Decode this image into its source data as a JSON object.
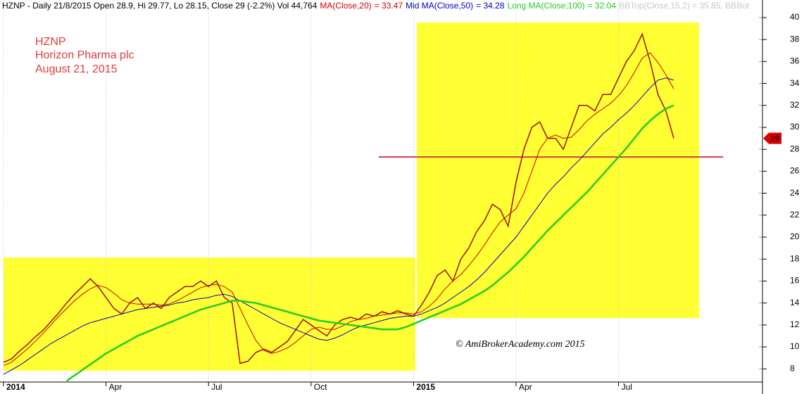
{
  "chart_data": {
    "type": "stock",
    "header": {
      "prefix": "HZNP - Daily 21/8/2015 Open 28.9, Hi 29.77, Lo 28.15, Close 29 (-2.2%) Vol 44,764",
      "suffix": "BBTop(Close,15,2) = 35.85, BBBot",
      "suffix_color": "#c8c8c8"
    },
    "annotation": {
      "ticker": "HZNP",
      "company": "Horizon Pharma plc",
      "date": "August 21, 2015",
      "color": "#e03c3c"
    },
    "watermark": "© AmiBrokerAcademy.com 2015",
    "categories": [
      "2014",
      null,
      null,
      null,
      null,
      null,
      null,
      null,
      null,
      null,
      null,
      null,
      null,
      "Apr",
      null,
      null,
      null,
      null,
      null,
      null,
      null,
      null,
      null,
      null,
      null,
      null,
      "Jul",
      null,
      null,
      null,
      null,
      null,
      null,
      null,
      null,
      null,
      null,
      null,
      null,
      "Oct",
      null,
      null,
      null,
      null,
      null,
      null,
      null,
      null,
      null,
      null,
      null,
      null,
      "2015",
      null,
      null,
      null,
      null,
      null,
      null,
      null,
      null,
      null,
      null,
      null,
      null,
      "Apr",
      null,
      null,
      null,
      null,
      null,
      null,
      null,
      null,
      null,
      null,
      null,
      null,
      "Jul",
      null,
      null,
      null,
      null,
      null,
      null,
      null
    ],
    "price": {
      "color": "#a01010",
      "values": [
        8.6,
        8.9,
        9.6,
        10.2,
        10.9,
        11.5,
        12.3,
        13.1,
        14,
        14.8,
        15.5,
        16.2,
        15.5,
        14.5,
        13.5,
        13,
        14,
        14.5,
        13.5,
        14,
        13.5,
        14.5,
        15,
        15.5,
        15.5,
        16,
        15.5,
        16,
        14.5,
        14,
        8.5,
        8.7,
        9.5,
        9.8,
        9.5,
        10,
        10.5,
        11.5,
        12.5,
        12,
        11.5,
        11,
        12,
        12.5,
        12.7,
        12.5,
        13,
        12.8,
        13.2,
        13,
        13.3,
        13,
        12.8,
        13.8,
        15,
        16.5,
        17,
        16,
        18,
        19,
        20.5,
        21.5,
        23,
        22.5,
        21,
        25,
        28,
        30,
        30.5,
        29,
        29,
        28,
        30,
        32,
        32,
        31.5,
        33,
        33,
        34.5,
        36,
        37,
        38.5,
        36,
        33,
        31.5,
        29
      ]
    },
    "series": [
      {
        "name": "MA(Close,20)",
        "label": "= 33.47",
        "color": "#d00000",
        "width": 1,
        "values": [
          8.3,
          8.6,
          9.2,
          9.8,
          10.5,
          11.2,
          12,
          12.8,
          13.5,
          14.2,
          14.8,
          15.3,
          15.6,
          15.4,
          14.9,
          14.3,
          14,
          13.9,
          13.9,
          13.9,
          13.8,
          13.9,
          14.2,
          14.6,
          15,
          15.4,
          15.6,
          15.7,
          15.5,
          15,
          13.5,
          12,
          10.6,
          9.7,
          9.4,
          9.6,
          9.9,
          10.4,
          11,
          11.6,
          11.8,
          11.6,
          11.6,
          11.9,
          12.3,
          12.5,
          12.6,
          12.8,
          12.9,
          13,
          13.1,
          13.1,
          13,
          13.2,
          13.7,
          14.4,
          15.3,
          16,
          16.6,
          17.4,
          18.3,
          19.3,
          20.4,
          21.4,
          22,
          22.6,
          24,
          26,
          28,
          29,
          29.3,
          29,
          29.1,
          29.8,
          30.6,
          31.2,
          31.7,
          32.2,
          32.9,
          33.8,
          35,
          36.3,
          36.8,
          35.9,
          34.8,
          33.5
        ]
      },
      {
        "name": "Mid MA(Close,50)",
        "label": "= 34.28",
        "color": "#0000c0",
        "width": 1,
        "values": [
          7.5,
          7.9,
          8.3,
          8.8,
          9.3,
          9.8,
          10.3,
          10.7,
          11.1,
          11.5,
          11.9,
          12.2,
          12.4,
          12.6,
          12.8,
          13,
          13.2,
          13.4,
          13.5,
          13.6,
          13.7,
          13.8,
          14,
          14.1,
          14.3,
          14.4,
          14.5,
          14.7,
          14.8,
          14.6,
          14.2,
          13.8,
          13.4,
          13,
          12.6,
          12.2,
          11.9,
          11.6,
          11.3,
          11,
          10.7,
          10.6,
          10.8,
          11.1,
          11.5,
          11.8,
          12,
          12.2,
          12.4,
          12.6,
          12.7,
          12.8,
          12.8,
          13,
          13.3,
          13.6,
          14,
          14.5,
          15,
          15.5,
          16.1,
          16.8,
          17.6,
          18.4,
          19.2,
          20,
          21,
          22,
          23,
          24,
          24.8,
          25.5,
          26.3,
          27,
          27.8,
          28.6,
          29.4,
          30,
          30.7,
          31.3,
          32,
          32.8,
          33.6,
          34.3,
          34.5,
          34.3
        ]
      },
      {
        "name": "Long MA(Close,100)",
        "label": "= 32.04",
        "color": "#22cc22",
        "width": 2.5,
        "values": [
          null,
          null,
          null,
          null,
          null,
          null,
          null,
          null,
          6.9,
          7.4,
          7.9,
          8.4,
          8.9,
          9.4,
          9.8,
          10.2,
          10.6,
          11,
          11.3,
          11.6,
          11.9,
          12.2,
          12.5,
          12.8,
          13.1,
          13.4,
          13.6,
          13.8,
          14,
          14.2,
          14.2,
          14.1,
          14,
          13.8,
          13.6,
          13.4,
          13.2,
          13,
          12.8,
          12.6,
          12.4,
          12.3,
          12.2,
          12.1,
          12,
          11.9,
          11.8,
          11.7,
          11.6,
          11.6,
          11.6,
          11.8,
          12.1,
          12.4,
          12.7,
          13,
          13.3,
          13.6,
          13.9,
          14.3,
          14.7,
          15.1,
          15.6,
          16.2,
          16.8,
          17.5,
          18.2,
          19,
          19.8,
          20.6,
          21.3,
          22,
          22.7,
          23.4,
          24.1,
          24.9,
          25.7,
          26.5,
          27.3,
          28.1,
          29,
          29.9,
          30.6,
          31.2,
          31.7,
          32
        ]
      }
    ],
    "support_line": {
      "value": 27.3,
      "color": "#d04040"
    },
    "ylim": [
      6.8,
      41.6
    ],
    "yticks": [
      8,
      10,
      12,
      14,
      16,
      18,
      20,
      22,
      24,
      26,
      28,
      30,
      32,
      34,
      36,
      38,
      40
    ],
    "grid": true
  }
}
